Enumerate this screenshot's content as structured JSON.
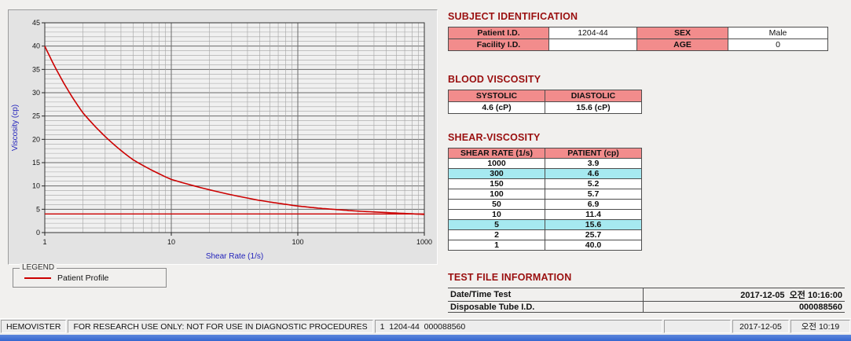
{
  "chart_data": {
    "type": "line",
    "title": "",
    "xlabel": "Shear Rate (1/s)",
    "ylabel": "Viscosity (cp)",
    "x_scale": "log",
    "xlim": [
      1,
      1000
    ],
    "ylim": [
      0,
      45
    ],
    "x_ticks": [
      1,
      10,
      100,
      1000
    ],
    "y_tick_step": 5,
    "grid": "both-with-minor",
    "series": [
      {
        "name": "Patient Profile",
        "color": "#cc0000",
        "x": [
          1,
          2,
          5,
          10,
          50,
          100,
          150,
          300,
          1000
        ],
        "y": [
          40.0,
          25.7,
          15.6,
          11.4,
          6.9,
          5.7,
          5.2,
          4.6,
          3.9
        ]
      }
    ],
    "reference_line": {
      "y": 4.0,
      "color": "#cc0000"
    },
    "legend": {
      "title": "LEGEND",
      "position": "below-left",
      "items": [
        {
          "label": "Patient Profile",
          "color": "#cc0000"
        }
      ]
    }
  },
  "subject_identification": {
    "title": "SUBJECT IDENTIFICATION",
    "rows": [
      {
        "label1": "Patient I.D.",
        "value1": "1204-44",
        "label2": "SEX",
        "value2": "Male"
      },
      {
        "label1": "Facility I.D.",
        "value1": "",
        "label2": "AGE",
        "value2": "0"
      }
    ]
  },
  "blood_viscosity": {
    "title": "BLOOD VISCOSITY",
    "headers": [
      "SYSTOLIC",
      "DIASTOLIC"
    ],
    "values": [
      "4.6 (cP)",
      "15.6 (cP)"
    ]
  },
  "shear_viscosity": {
    "title": "SHEAR-VISCOSITY",
    "headers": [
      "SHEAR RATE (1/s)",
      "PATIENT (cp)"
    ],
    "rows": [
      {
        "rate": "1000",
        "value": "3.9",
        "highlight": false
      },
      {
        "rate": "300",
        "value": "4.6",
        "highlight": true
      },
      {
        "rate": "150",
        "value": "5.2",
        "highlight": false
      },
      {
        "rate": "100",
        "value": "5.7",
        "highlight": false
      },
      {
        "rate": "50",
        "value": "6.9",
        "highlight": false
      },
      {
        "rate": "10",
        "value": "11.4",
        "highlight": false
      },
      {
        "rate": "5",
        "value": "15.6",
        "highlight": true
      },
      {
        "rate": "2",
        "value": "25.7",
        "highlight": false
      },
      {
        "rate": "1",
        "value": "40.0",
        "highlight": false
      }
    ]
  },
  "test_file_information": {
    "title": "TEST FILE INFORMATION",
    "rows": [
      {
        "label": "Date/Time Test",
        "value": "2017-12-05  오전 10:16:00"
      },
      {
        "label": "Disposable Tube I.D.",
        "value": "000088560"
      }
    ]
  },
  "status_bar": {
    "app_name": "HEMOVISTER",
    "notice": "FOR RESEARCH USE ONLY: NOT FOR USE IN DIAGNOSTIC PROCEDURES",
    "record": "1  1204-44  000088560",
    "date": "2017-12-05",
    "time": "오전 10:19"
  },
  "colors": {
    "title_maroon": "#9a0f0f",
    "header_pink": "#f28c8c",
    "highlight_cyan": "#a6e9f0",
    "curve_red": "#cc0000",
    "axis_label_blue": "#2323bb",
    "taskbar_blue": "#3566cf"
  }
}
